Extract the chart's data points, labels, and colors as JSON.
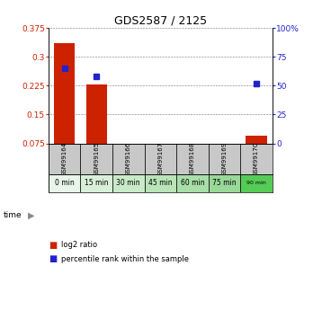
{
  "title": "GDS2587 / 2125",
  "samples": [
    "GSM99164",
    "GSM99165",
    "GSM99166",
    "GSM99167",
    "GSM99168",
    "GSM99169",
    "GSM99170"
  ],
  "time_labels": [
    "0 min",
    "15 min",
    "30 min",
    "45 min",
    "60 min",
    "75 min",
    "90 min"
  ],
  "log2_ratio": [
    0.335,
    0.228,
    0.0,
    0.0,
    0.0,
    0.0,
    0.095
  ],
  "percentile_rank": [
    65.0,
    58.0,
    null,
    null,
    null,
    null,
    52.0
  ],
  "left_ylim": [
    0.075,
    0.375
  ],
  "right_ylim": [
    0,
    100
  ],
  "left_yticks": [
    0.075,
    0.15,
    0.225,
    0.3,
    0.375
  ],
  "right_yticks": [
    0,
    25,
    50,
    75,
    100
  ],
  "left_tick_labels": [
    "0.075",
    "0.15",
    "0.225",
    "0.3",
    "0.375"
  ],
  "right_tick_labels": [
    "0",
    "25",
    "50",
    "75",
    "100%"
  ],
  "bar_color": "#cc2200",
  "dot_color": "#2222cc",
  "background_color": "#ffffff",
  "sample_bg_color": "#c8c8c8",
  "time_bg_colors": [
    "#e8f5e8",
    "#d8f0d8",
    "#c8e8c8",
    "#b8e0b8",
    "#a8d8a8",
    "#98d098",
    "#55cc55"
  ],
  "bar_width": 0.65,
  "legend_items": [
    "log2 ratio",
    "percentile rank within the sample"
  ]
}
